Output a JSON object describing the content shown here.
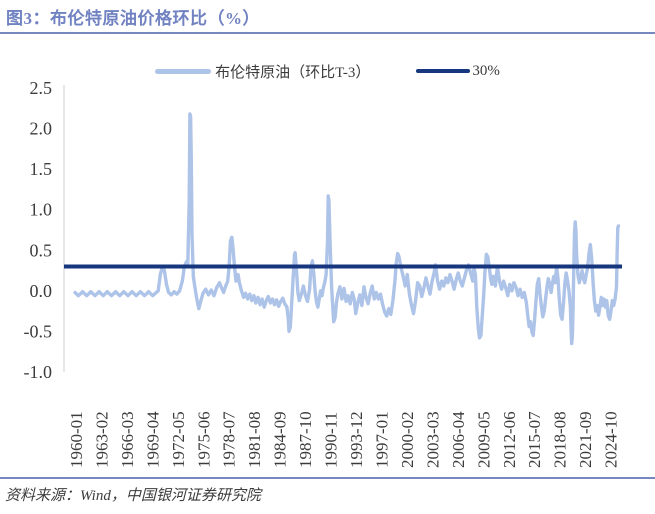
{
  "header": {
    "title": "图3：布伦特原油价格环比（%）"
  },
  "legend": {
    "items": [
      {
        "label": "布伦特原油（环比T-3）",
        "color": "#AEC3E8"
      },
      {
        "label": "30%",
        "color": "#16367E"
      }
    ]
  },
  "chart_data": {
    "type": "line",
    "title": "布伦特原油价格环比（%）",
    "xlabel": "",
    "ylabel": "",
    "ylim": [
      -1.0,
      2.5
    ],
    "grid": false,
    "legend_position": "top-center",
    "y_ticks": [
      2.5,
      2.0,
      1.5,
      1.0,
      0.5,
      0.0,
      -0.5,
      -1.0
    ],
    "x_tick_month_interval": 37,
    "x_tick_labels": [
      "1960-01",
      "1963-02",
      "1966-03",
      "1969-04",
      "1972-05",
      "1975-06",
      "1978-07",
      "1981-08",
      "1984-09",
      "1987-10",
      "1990-11",
      "1993-12",
      "1997-01",
      "2000-02",
      "2003-03",
      "2006-04",
      "2009-05",
      "2012-06",
      "2015-07",
      "2018-08",
      "2021-09",
      "2024-10"
    ],
    "series": [
      {
        "name": "布伦特原油（环比T-3）",
        "type": "line",
        "color": "#AEC3E8",
        "x_unit": "months_since_1960-01",
        "points": [
          [
            0,
            -0.02
          ],
          [
            5,
            -0.06
          ],
          [
            11,
            -0.01
          ],
          [
            17,
            -0.06
          ],
          [
            23,
            -0.01
          ],
          [
            29,
            -0.06
          ],
          [
            35,
            -0.01
          ],
          [
            41,
            -0.06
          ],
          [
            47,
            -0.01
          ],
          [
            53,
            -0.06
          ],
          [
            59,
            -0.01
          ],
          [
            65,
            -0.06
          ],
          [
            71,
            -0.01
          ],
          [
            77,
            -0.06
          ],
          [
            83,
            -0.01
          ],
          [
            89,
            -0.06
          ],
          [
            95,
            -0.01
          ],
          [
            101,
            -0.06
          ],
          [
            107,
            -0.01
          ],
          [
            113,
            -0.06
          ],
          [
            118,
            -0.02
          ],
          [
            121,
            0.0
          ],
          [
            124,
            0.2
          ],
          [
            127,
            0.3
          ],
          [
            130,
            0.25
          ],
          [
            133,
            0.08
          ],
          [
            136,
            -0.02
          ],
          [
            140,
            -0.05
          ],
          [
            144,
            -0.01
          ],
          [
            148,
            -0.04
          ],
          [
            152,
            0.0
          ],
          [
            156,
            0.12
          ],
          [
            159,
            0.3
          ],
          [
            162,
            0.36
          ],
          [
            164,
            0.33
          ],
          [
            166,
            1.1
          ],
          [
            167,
            2.18
          ],
          [
            168,
            2.15
          ],
          [
            169,
            1.6
          ],
          [
            170,
            0.7
          ],
          [
            172,
            0.18
          ],
          [
            174,
            0.06
          ],
          [
            177,
            -0.1
          ],
          [
            180,
            -0.22
          ],
          [
            183,
            -0.12
          ],
          [
            186,
            -0.03
          ],
          [
            190,
            0.02
          ],
          [
            194,
            -0.05
          ],
          [
            198,
            0.01
          ],
          [
            202,
            -0.06
          ],
          [
            206,
            0.04
          ],
          [
            210,
            0.1
          ],
          [
            213,
            0.04
          ],
          [
            216,
            -0.02
          ],
          [
            219,
            0.06
          ],
          [
            222,
            0.12
          ],
          [
            224,
            0.3
          ],
          [
            226,
            0.62
          ],
          [
            228,
            0.66
          ],
          [
            230,
            0.5
          ],
          [
            232,
            0.28
          ],
          [
            234,
            0.12
          ],
          [
            237,
            0.2
          ],
          [
            239,
            0.1
          ],
          [
            242,
            0.0
          ],
          [
            245,
            -0.08
          ],
          [
            248,
            -0.03
          ],
          [
            251,
            -0.1
          ],
          [
            254,
            -0.04
          ],
          [
            257,
            -0.12
          ],
          [
            260,
            -0.06
          ],
          [
            263,
            -0.15
          ],
          [
            266,
            -0.08
          ],
          [
            269,
            -0.17
          ],
          [
            272,
            -0.1
          ],
          [
            275,
            -0.2
          ],
          [
            278,
            -0.12
          ],
          [
            281,
            -0.07
          ],
          [
            284,
            -0.15
          ],
          [
            287,
            -0.1
          ],
          [
            290,
            -0.17
          ],
          [
            293,
            -0.11
          ],
          [
            296,
            -0.19
          ],
          [
            299,
            -0.13
          ],
          [
            302,
            -0.09
          ],
          [
            305,
            -0.16
          ],
          [
            308,
            -0.2
          ],
          [
            310,
            -0.35
          ],
          [
            311,
            -0.5
          ],
          [
            313,
            -0.45
          ],
          [
            315,
            -0.15
          ],
          [
            317,
            0.15
          ],
          [
            319,
            0.45
          ],
          [
            320,
            0.47
          ],
          [
            322,
            0.25
          ],
          [
            324,
            -0.02
          ],
          [
            326,
            -0.12
          ],
          [
            329,
            -0.04
          ],
          [
            332,
            0.06
          ],
          [
            335,
            -0.06
          ],
          [
            338,
            -0.13
          ],
          [
            341,
            0.02
          ],
          [
            343,
            0.3
          ],
          [
            345,
            0.37
          ],
          [
            347,
            0.22
          ],
          [
            349,
            0.0
          ],
          [
            351,
            -0.14
          ],
          [
            353,
            -0.2
          ],
          [
            355,
            -0.1
          ],
          [
            357,
            0.0
          ],
          [
            359,
            -0.06
          ],
          [
            361,
            0.04
          ],
          [
            363,
            0.1
          ],
          [
            365,
            0.2
          ],
          [
            367,
            0.6
          ],
          [
            368,
            1.17
          ],
          [
            369,
            1.12
          ],
          [
            371,
            0.55
          ],
          [
            373,
            0.05
          ],
          [
            375,
            -0.25
          ],
          [
            376,
            -0.38
          ],
          [
            378,
            -0.33
          ],
          [
            380,
            -0.15
          ],
          [
            382,
            -0.04
          ],
          [
            385,
            0.05
          ],
          [
            388,
            -0.1
          ],
          [
            391,
            0.03
          ],
          [
            394,
            -0.13
          ],
          [
            397,
            -0.06
          ],
          [
            400,
            -0.16
          ],
          [
            403,
            -0.02
          ],
          [
            406,
            -0.11
          ],
          [
            408,
            -0.28
          ],
          [
            411,
            -0.15
          ],
          [
            414,
            -0.05
          ],
          [
            417,
            -0.18
          ],
          [
            420,
            0.05
          ],
          [
            423,
            -0.08
          ],
          [
            426,
            -0.16
          ],
          [
            429,
            -0.03
          ],
          [
            432,
            0.06
          ],
          [
            435,
            -0.1
          ],
          [
            438,
            -0.02
          ],
          [
            441,
            -0.1
          ],
          [
            444,
            -0.04
          ],
          [
            447,
            -0.16
          ],
          [
            450,
            -0.26
          ],
          [
            453,
            -0.31
          ],
          [
            456,
            -0.22
          ],
          [
            459,
            -0.29
          ],
          [
            462,
            -0.12
          ],
          [
            465,
            0.12
          ],
          [
            467,
            0.35
          ],
          [
            469,
            0.46
          ],
          [
            471,
            0.42
          ],
          [
            474,
            0.28
          ],
          [
            477,
            0.18
          ],
          [
            480,
            0.06
          ],
          [
            483,
            0.2
          ],
          [
            486,
            -0.04
          ],
          [
            489,
            -0.17
          ],
          [
            492,
            -0.28
          ],
          [
            495,
            -0.12
          ],
          [
            498,
            0.1
          ],
          [
            501,
            0.06
          ],
          [
            504,
            -0.07
          ],
          [
            507,
            0.03
          ],
          [
            510,
            0.16
          ],
          [
            513,
            0.06
          ],
          [
            516,
            -0.04
          ],
          [
            519,
            0.12
          ],
          [
            522,
            0.22
          ],
          [
            524,
            0.32
          ],
          [
            527,
            0.12
          ],
          [
            530,
            0.02
          ],
          [
            533,
            0.12
          ],
          [
            536,
            0.06
          ],
          [
            539,
            0.16
          ],
          [
            542,
            0.1
          ],
          [
            545,
            0.2
          ],
          [
            548,
            0.12
          ],
          [
            551,
            0.02
          ],
          [
            554,
            0.14
          ],
          [
            557,
            0.22
          ],
          [
            560,
            0.12
          ],
          [
            563,
            0.06
          ],
          [
            566,
            0.16
          ],
          [
            569,
            0.26
          ],
          [
            572,
            0.32
          ],
          [
            575,
            0.22
          ],
          [
            578,
            0.12
          ],
          [
            580,
            0.28
          ],
          [
            582,
            0.2
          ],
          [
            584,
            -0.2
          ],
          [
            586,
            -0.45
          ],
          [
            588,
            -0.58
          ],
          [
            590,
            -0.55
          ],
          [
            592,
            -0.3
          ],
          [
            594,
            -0.05
          ],
          [
            596,
            0.25
          ],
          [
            598,
            0.45
          ],
          [
            600,
            0.42
          ],
          [
            602,
            0.3
          ],
          [
            604,
            0.15
          ],
          [
            606,
            0.08
          ],
          [
            608,
            0.18
          ],
          [
            611,
            0.06
          ],
          [
            614,
            0.3
          ],
          [
            617,
            0.12
          ],
          [
            620,
            0.02
          ],
          [
            623,
            0.12
          ],
          [
            626,
            0.04
          ],
          [
            629,
            -0.06
          ],
          [
            632,
            0.08
          ],
          [
            635,
            0.0
          ],
          [
            638,
            0.1
          ],
          [
            641,
            0.04
          ],
          [
            644,
            -0.06
          ],
          [
            647,
            0.02
          ],
          [
            650,
            -0.08
          ],
          [
            653,
            -0.02
          ],
          [
            656,
            -0.14
          ],
          [
            658,
            -0.3
          ],
          [
            660,
            -0.44
          ],
          [
            662,
            -0.38
          ],
          [
            664,
            -0.5
          ],
          [
            666,
            -0.55
          ],
          [
            668,
            -0.35
          ],
          [
            670,
            -0.12
          ],
          [
            672,
            0.08
          ],
          [
            674,
            0.15
          ],
          [
            676,
            -0.05
          ],
          [
            678,
            -0.2
          ],
          [
            680,
            -0.32
          ],
          [
            682,
            -0.25
          ],
          [
            684,
            -0.1
          ],
          [
            686,
            0.05
          ],
          [
            688,
            0.15
          ],
          [
            690,
            0.08
          ],
          [
            692,
            -0.02
          ],
          [
            694,
            0.1
          ],
          [
            696,
            0.18
          ],
          [
            698,
            0.1
          ],
          [
            700,
            0.3
          ],
          [
            702,
            0.15
          ],
          [
            704,
            -0.12
          ],
          [
            706,
            -0.3
          ],
          [
            708,
            -0.35
          ],
          [
            710,
            -0.15
          ],
          [
            712,
            0.1
          ],
          [
            714,
            0.22
          ],
          [
            716,
            0.12
          ],
          [
            718,
            0.0
          ],
          [
            720,
            -0.2
          ],
          [
            721,
            -0.45
          ],
          [
            722,
            -0.65
          ],
          [
            723,
            -0.55
          ],
          [
            724,
            -0.2
          ],
          [
            725,
            0.3
          ],
          [
            726,
            0.7
          ],
          [
            727,
            0.85
          ],
          [
            728,
            0.75
          ],
          [
            729,
            0.45
          ],
          [
            731,
            0.2
          ],
          [
            733,
            0.1
          ],
          [
            735,
            0.18
          ],
          [
            737,
            0.25
          ],
          [
            739,
            0.15
          ],
          [
            741,
            0.1
          ],
          [
            743,
            0.2
          ],
          [
            745,
            0.28
          ],
          [
            747,
            0.45
          ],
          [
            749,
            0.57
          ],
          [
            751,
            0.4
          ],
          [
            753,
            0.1
          ],
          [
            755,
            -0.12
          ],
          [
            757,
            -0.25
          ],
          [
            759,
            -0.18
          ],
          [
            761,
            -0.3
          ],
          [
            763,
            -0.2
          ],
          [
            765,
            -0.08
          ],
          [
            767,
            -0.18
          ],
          [
            769,
            -0.1
          ],
          [
            771,
            -0.2
          ],
          [
            773,
            -0.12
          ],
          [
            775,
            -0.3
          ],
          [
            777,
            -0.35
          ],
          [
            779,
            -0.25
          ],
          [
            781,
            -0.12
          ],
          [
            783,
            -0.18
          ],
          [
            785,
            -0.1
          ],
          [
            787,
            0.05
          ],
          [
            788,
            0.45
          ],
          [
            789,
            0.78
          ],
          [
            790,
            0.8
          ]
        ]
      },
      {
        "name": "30%",
        "type": "hline",
        "color": "#16367E",
        "value": 0.3
      }
    ]
  },
  "footer": {
    "source": "资料来源：Wind，中国银河证券研究院"
  },
  "colors": {
    "accent": "#7082C1",
    "rule": "#7787C0",
    "series_light": "#AEC3E8",
    "series_dark": "#16367E",
    "axis": "#DCDCDC",
    "tick_text": "#3C3C3C"
  }
}
